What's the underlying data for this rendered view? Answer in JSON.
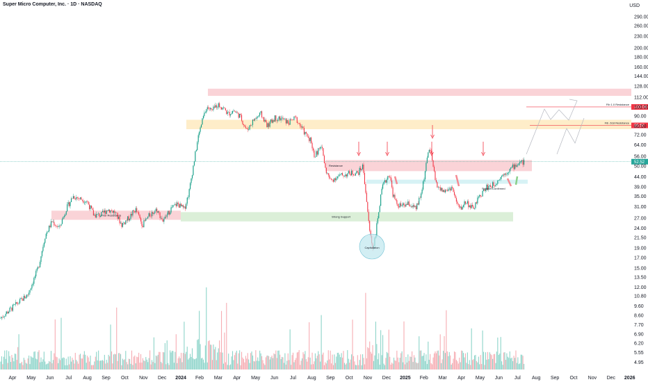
{
  "header": {
    "title": "Super Micro Computer, Inc. · 1D · NASDAQ",
    "currency": "USD"
  },
  "chart_data": {
    "type": "candlestick",
    "title": "Super Micro Computer, Inc. · 1D · NASDAQ",
    "yscale": "log",
    "ylim": [
      4.7,
      330
    ],
    "y_ticks": [
      290.0,
      260.0,
      230.0,
      200.0,
      180.0,
      160.0,
      144.0,
      128.0,
      112.0,
      100.0,
      90.0,
      80.0,
      72.0,
      64.0,
      56.0,
      50.0,
      44.0,
      39.0,
      35.0,
      31.0,
      27.0,
      24.0,
      21.5,
      19.0,
      17.0,
      15.0,
      13.5,
      12.0,
      10.8,
      9.6,
      8.6,
      7.7,
      6.9,
      6.2,
      5.55,
      4.95
    ],
    "y_tick_labels": [
      "290.00",
      "260.00",
      "230.00",
      "200.00",
      "180.00",
      "160.00",
      "144.00",
      "128.00",
      "112.00",
      "100.00",
      "90.00",
      "80.00",
      "72.00",
      "64.00",
      "56.00",
      "50.00",
      "44.00",
      "39.00",
      "35.00",
      "31.00",
      "27.00",
      "24.00",
      "21.50",
      "19.00",
      "17.00",
      "15.00",
      "13.50",
      "12.00",
      "10.80",
      "9.60",
      "8.60",
      "7.70",
      "6.90",
      "6.20",
      "5.55",
      "4.95"
    ],
    "x_labels": [
      "Apr",
      "May",
      "Jun",
      "Jul",
      "Aug",
      "Sep",
      "Oct",
      "Nov",
      "Dec",
      "2024",
      "Feb",
      "Mar",
      "Apr",
      "May",
      "Jun",
      "Jul",
      "Aug",
      "Sep",
      "Oct",
      "Nov",
      "Dec",
      "2025",
      "Feb",
      "Mar",
      "Apr",
      "May",
      "Jun",
      "Jul",
      "Aug",
      "Sep",
      "Oct",
      "Nov",
      "Dec",
      "2026"
    ],
    "current_price": "52.52",
    "price_markers": [
      {
        "label": "100.06",
        "value": 100.06,
        "color": "#f23645"
      },
      {
        "label": "80.50",
        "value": 80.5,
        "color": "#f23645"
      }
    ],
    "zones": [
      {
        "label": "",
        "low": 114,
        "high": 124,
        "color": "#f8c4c9"
      },
      {
        "label": "",
        "low": 77,
        "high": 86,
        "color": "#fde7b7"
      },
      {
        "label": "Resistance",
        "low": 47,
        "high": 53.5,
        "color": "#f8c4c9"
      },
      {
        "label": "",
        "low": 40.5,
        "high": 42.5,
        "color": "#c9eef2"
      },
      {
        "label": "Prior Resistance",
        "low": 26.5,
        "high": 29.5,
        "color": "#f8c4c9"
      },
      {
        "label": "Strong Support",
        "low": 26,
        "high": 29,
        "color": "#cfe9cb"
      }
    ],
    "annotations": [
      {
        "text": "Fib 1.0 Resistance"
      },
      {
        "text": "Fib .618 Resistance"
      },
      {
        "text": "Support Confirmed"
      },
      {
        "text": "Capitulation"
      }
    ],
    "price_anchors": [
      [
        0,
        8.3
      ],
      [
        40,
        11
      ],
      [
        55,
        15
      ],
      [
        65,
        22
      ],
      [
        75,
        26
      ],
      [
        85,
        24
      ],
      [
        95,
        30
      ],
      [
        105,
        35
      ],
      [
        115,
        34
      ],
      [
        125,
        33
      ],
      [
        135,
        28
      ],
      [
        145,
        28
      ],
      [
        155,
        30
      ],
      [
        165,
        29
      ],
      [
        175,
        25
      ],
      [
        185,
        27
      ],
      [
        195,
        30
      ],
      [
        205,
        25
      ],
      [
        215,
        28
      ],
      [
        225,
        30
      ],
      [
        235,
        26
      ],
      [
        245,
        30
      ],
      [
        255,
        32
      ],
      [
        265,
        30
      ],
      [
        272,
        37
      ],
      [
        278,
        50
      ],
      [
        285,
        70
      ],
      [
        292,
        88
      ],
      [
        298,
        100
      ],
      [
        305,
        95
      ],
      [
        312,
        103
      ],
      [
        320,
        100
      ],
      [
        328,
        92
      ],
      [
        336,
        96
      ],
      [
        345,
        90
      ],
      [
        355,
        76
      ],
      [
        365,
        86
      ],
      [
        375,
        92
      ],
      [
        385,
        80
      ],
      [
        395,
        88
      ],
      [
        405,
        87
      ],
      [
        415,
        83
      ],
      [
        425,
        88
      ],
      [
        432,
        80
      ],
      [
        440,
        72
      ],
      [
        447,
        68
      ],
      [
        452,
        56
      ],
      [
        458,
        60
      ],
      [
        463,
        63
      ],
      [
        468,
        48
      ],
      [
        475,
        42
      ],
      [
        485,
        44
      ],
      [
        495,
        45
      ],
      [
        505,
        46
      ],
      [
        515,
        46
      ],
      [
        522,
        50
      ],
      [
        527,
        34
      ],
      [
        531,
        24
      ],
      [
        536,
        19
      ],
      [
        540,
        22
      ],
      [
        545,
        30
      ],
      [
        550,
        39
      ],
      [
        555,
        42
      ],
      [
        560,
        46
      ],
      [
        565,
        36
      ],
      [
        570,
        32
      ],
      [
        578,
        31
      ],
      [
        588,
        32
      ],
      [
        598,
        30
      ],
      [
        605,
        35
      ],
      [
        612,
        48
      ],
      [
        617,
        62
      ],
      [
        621,
        55
      ],
      [
        626,
        42
      ],
      [
        632,
        38
      ],
      [
        640,
        37
      ],
      [
        650,
        39
      ],
      [
        657,
        32
      ],
      [
        662,
        30
      ],
      [
        670,
        33
      ],
      [
        680,
        30
      ],
      [
        690,
        35
      ],
      [
        700,
        39
      ],
      [
        710,
        40
      ],
      [
        720,
        44
      ],
      [
        730,
        47
      ],
      [
        740,
        50
      ],
      [
        748,
        52
      ],
      [
        755,
        52.5
      ]
    ]
  }
}
